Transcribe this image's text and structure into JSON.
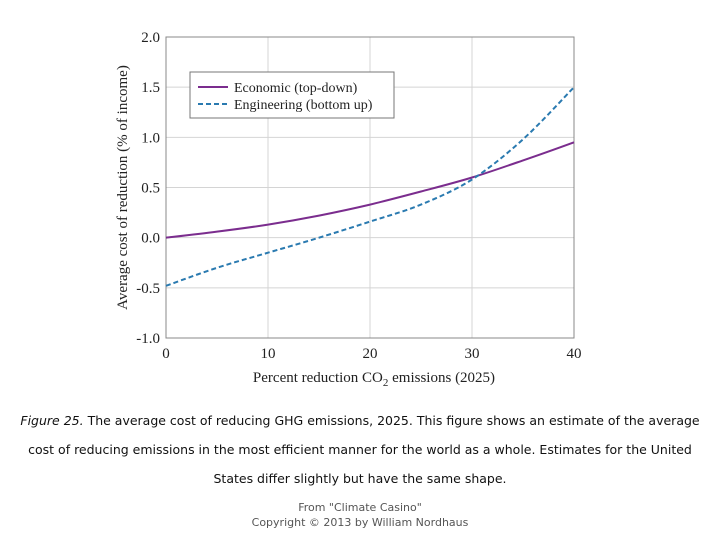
{
  "chart_data": {
    "type": "line",
    "title": "",
    "xlabel": "Percent reduction CO2 emissions (2025)",
    "xlabel_parts": {
      "pre": "Percent reduction CO",
      "sub": "2",
      "post": " emissions (2025)"
    },
    "ylabel": "Average cost of reduction (% of income)",
    "xlim": [
      0,
      40
    ],
    "ylim": [
      -1.0,
      2.0
    ],
    "x_ticks": [
      0,
      10,
      20,
      30,
      40
    ],
    "x_tick_labels": [
      "0",
      "10",
      "20",
      "30",
      "40"
    ],
    "y_ticks": [
      -1.0,
      -0.5,
      0.0,
      0.5,
      1.0,
      1.5,
      2.0
    ],
    "y_tick_labels": [
      "-1.0",
      "-0.5",
      "0.0",
      "0.5",
      "1.0",
      "1.5",
      "2.0"
    ],
    "grid": true,
    "legend_position": "top-left",
    "x": [
      0,
      5,
      10,
      15,
      20,
      25,
      30,
      35,
      40
    ],
    "series": [
      {
        "name": "Economic (top-down)",
        "color": "#7b2d8e",
        "style": "solid",
        "values": [
          0.0,
          0.06,
          0.13,
          0.22,
          0.33,
          0.46,
          0.6,
          0.77,
          0.95
        ]
      },
      {
        "name": "Engineering (bottom up)",
        "color": "#2a7ab0",
        "style": "dashed",
        "values": [
          -0.48,
          -0.3,
          -0.15,
          0.0,
          0.16,
          0.33,
          0.58,
          0.98,
          1.5
        ]
      }
    ]
  },
  "caption": {
    "figure_label": "Figure 25.",
    "text": " The average cost of reducing GHG emissions, 2025. This figure shows an estimate of the average cost of reducing emissions in the most efficient manner for the world as a whole. Estimates for the United States differ slightly but have the same shape."
  },
  "credit": {
    "line1": "From \"Climate Casino\"",
    "line2": "Copyright © 2013 by William Nordhaus"
  }
}
